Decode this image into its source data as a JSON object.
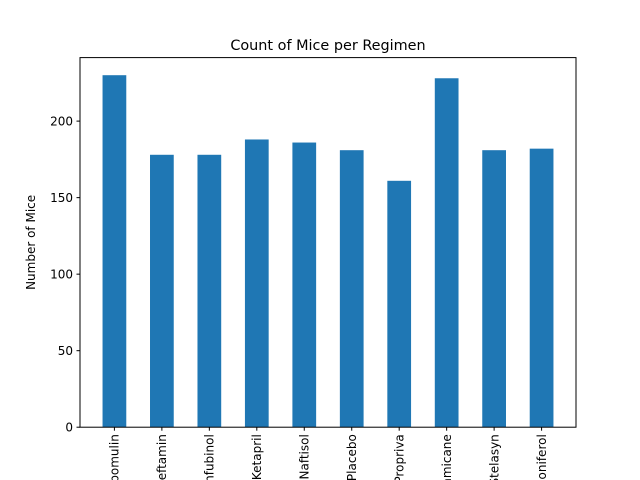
{
  "chart_data": {
    "type": "bar",
    "title": "Count of Mice per Regimen",
    "xlabel": "",
    "ylabel": "Number of Mice",
    "categories": [
      "Capomulin",
      "Ceftamin",
      "Infubinol",
      "Ketapril",
      "Naftisol",
      "Placebo",
      "Propriva",
      "Ramicane",
      "Stelasyn",
      "Zoniferol"
    ],
    "values": [
      230,
      178,
      178,
      188,
      186,
      181,
      161,
      228,
      181,
      182
    ],
    "ylim": [
      0,
      241.5
    ],
    "yticks": [
      0,
      50,
      100,
      150,
      200
    ],
    "grid": false,
    "legend": "none",
    "bar_color": "#1f77b4",
    "x_tick_rotation": 90
  }
}
